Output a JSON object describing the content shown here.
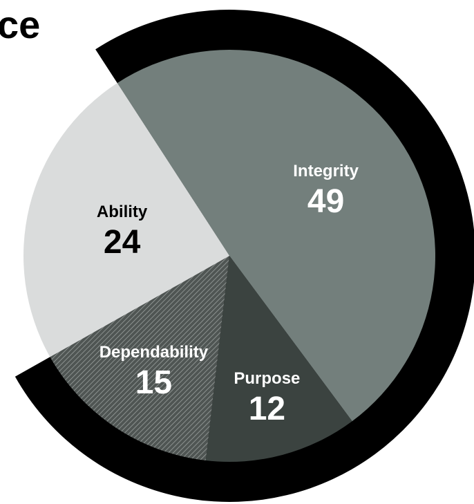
{
  "title": "ce",
  "chart_data": {
    "type": "pie",
    "categories": [
      "Integrity",
      "Purpose",
      "Dependability",
      "Ability"
    ],
    "values": [
      49,
      12,
      15,
      24
    ],
    "colors": {
      "Integrity": "#737f7c",
      "Purpose": "#3b4340",
      "Dependability": "#5e6462",
      "Ability": "#dadcdc"
    },
    "label_colors": {
      "Integrity": "#ffffff",
      "Purpose": "#ffffff",
      "Dependability": "#ffffff",
      "Ability": "#000000"
    },
    "patterns": {
      "Dependability": "diagonal-hatch"
    },
    "highlight_ring": {
      "color": "#000000",
      "covers": [
        "Integrity",
        "Purpose",
        "Dependability"
      ]
    },
    "start_angle_deg": -33,
    "direction": "clockwise",
    "legend": "none",
    "grid": false
  }
}
